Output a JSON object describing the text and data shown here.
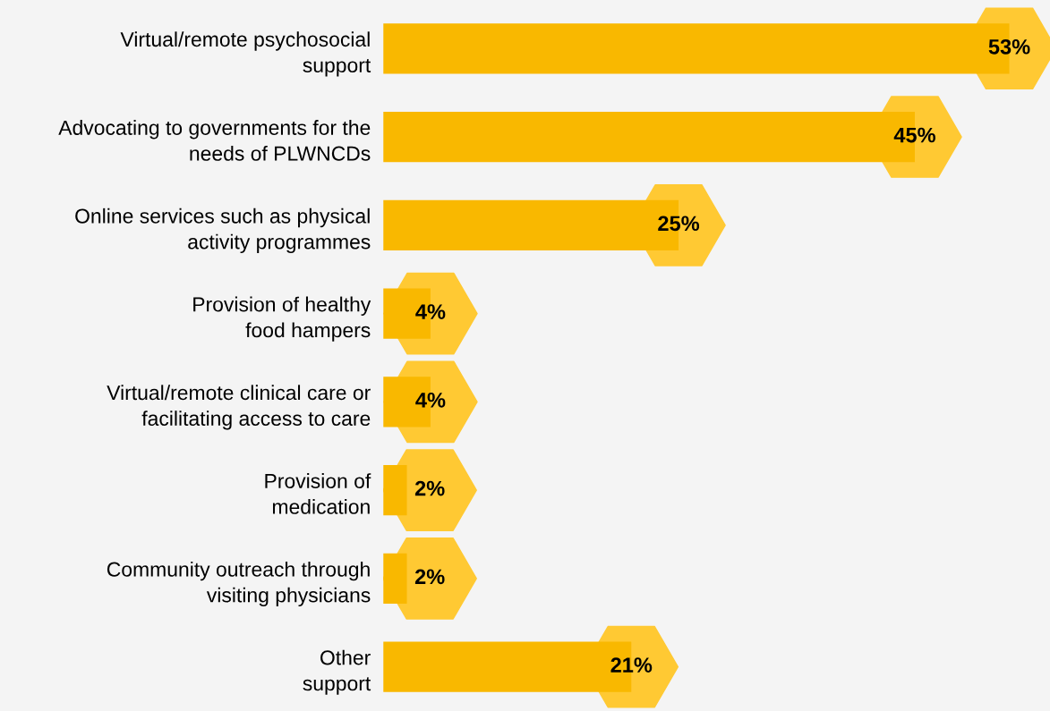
{
  "chart_data": {
    "type": "bar",
    "orientation": "horizontal",
    "categories": [
      "Virtual/remote psychosocial\nsupport",
      "Advocating to governments for the\nneeds of PLWNCDs",
      "Online services such as physical\nactivity programmes",
      "Provision of healthy\nfood hampers",
      "Virtual/remote clinical care or\nfacilitating access to care",
      "Provision of\nmedication",
      "Community outreach through\nvisiting physicians",
      "Other\nsupport"
    ],
    "values": [
      53,
      45,
      25,
      4,
      4,
      2,
      2,
      21
    ],
    "color": "#f9b800",
    "value_labels": [
      "53%",
      "45%",
      "25%",
      "4%",
      "4%",
      "2%",
      "2%",
      "21%"
    ]
  }
}
